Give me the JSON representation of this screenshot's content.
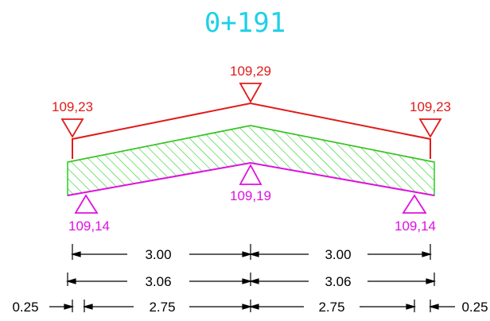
{
  "station": "0+191",
  "top_levels": {
    "left": "109,23",
    "center": "109,29",
    "right": "109,23"
  },
  "bottom_levels": {
    "left": "109,14",
    "center": "109,19",
    "right": "109,14"
  },
  "dimensions": {
    "row1": [
      "3.00",
      "3.00"
    ],
    "row2": [
      "3.06",
      "3.06"
    ],
    "row3": [
      "0.25",
      "2.75",
      "2.75",
      "0.25"
    ]
  },
  "colors": {
    "station": "#1fd0e8",
    "top_surface": "#e11b1b",
    "hatch": "#22d11f",
    "bottom_surface": "#e010e0",
    "dimension": "#000000"
  }
}
